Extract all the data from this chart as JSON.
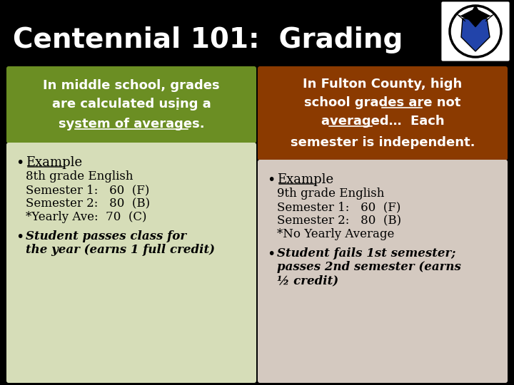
{
  "title": "Centennial 101:  Grading",
  "title_color": "#ffffff",
  "bg_color": "#000000",
  "left_header_bg": "#6b8e23",
  "left_header_color": "#ffffff",
  "right_header_bg": "#8b3a00",
  "right_header_color": "#ffffff",
  "left_body_bg": "#d6ddb8",
  "right_body_bg": "#d4c9c0",
  "left_header_lines": [
    "In middle school, grades",
    "are calculated using a",
    "system of averages."
  ],
  "right_header_lines": [
    "In Fulton County, high",
    "school grades are not",
    "averaged…  Each",
    "semester is independent."
  ],
  "left_body_bullet1_title": "Example",
  "left_body_bullet1_lines": [
    "8th grade English",
    "Semester 1:   60  (F)",
    "Semester 2:   80  (B)",
    "*Yearly Ave:  70  (C)"
  ],
  "left_body_bullet2_lines": [
    "Student passes class for",
    "the year (earns 1 full credit)"
  ],
  "right_body_bullet1_title": "Example",
  "right_body_bullet1_lines": [
    "9th grade English",
    "Semester 1:   60  (F)",
    "Semester 2:   80  (B)",
    "*No Yearly Average"
  ],
  "right_body_bullet2_lines": [
    "Student fails 1st semester;",
    "passes 2nd semester (earns",
    "½ credit)"
  ]
}
